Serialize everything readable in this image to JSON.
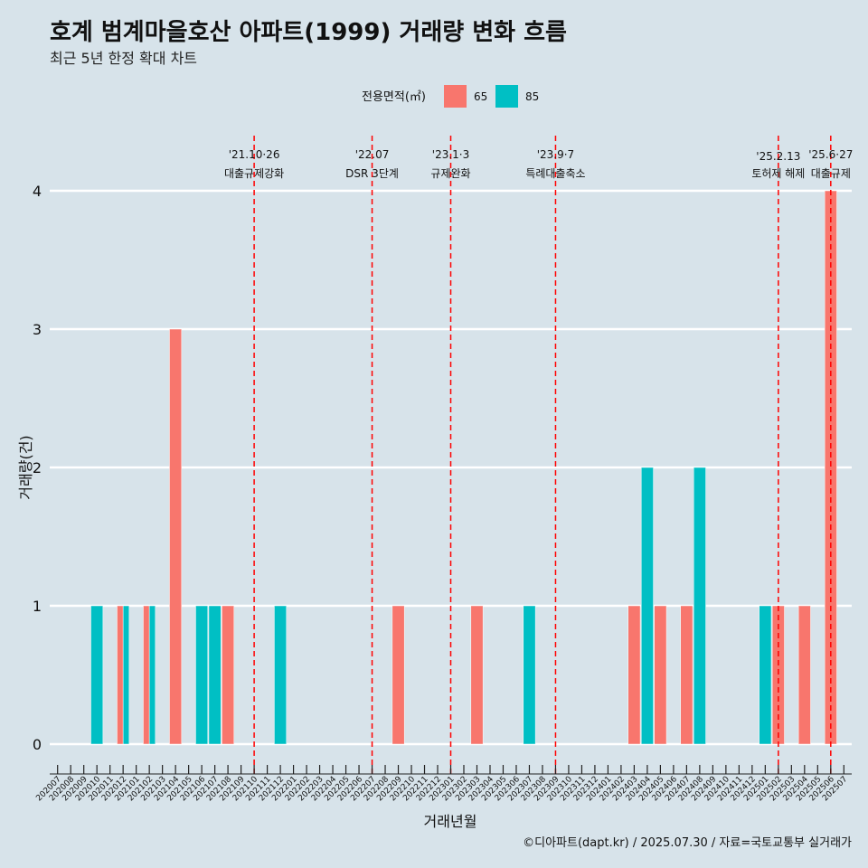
{
  "chart_data": {
    "type": "bar",
    "title": "호계 범계마을호산 아파트(1999) 거래량 변화 흐름",
    "subtitle": "최근 5년 한정 확대 차트",
    "xlabel": "거래년월",
    "ylabel": "거래량(건)",
    "caption": "©디아파트(dapt.kr) / 2025.07.30 / 자료=국토교통부 실거래가",
    "legend": {
      "title": "전용면적(㎡)",
      "position": "top"
    },
    "ylim": [
      0,
      4
    ],
    "yticks": [
      0,
      1,
      2,
      3,
      4
    ],
    "categories": [
      "202007",
      "202008",
      "202009",
      "202010",
      "202011",
      "202012",
      "202101",
      "202102",
      "202103",
      "202104",
      "202105",
      "202106",
      "202107",
      "202108",
      "202109",
      "202110",
      "202111",
      "202112",
      "202201",
      "202202",
      "202203",
      "202204",
      "202205",
      "202206",
      "202207",
      "202208",
      "202209",
      "202210",
      "202211",
      "202212",
      "202301",
      "202302",
      "202303",
      "202304",
      "202305",
      "202306",
      "202307",
      "202308",
      "202309",
      "202310",
      "202311",
      "202312",
      "202401",
      "202402",
      "202403",
      "202404",
      "202405",
      "202406",
      "202407",
      "202408",
      "202409",
      "202410",
      "202411",
      "202412",
      "202501",
      "202502",
      "202503",
      "202504",
      "202505",
      "202506",
      "202507"
    ],
    "series": [
      {
        "name": "65",
        "color": "#f8766d",
        "values": [
          0,
          0,
          0,
          0,
          0,
          1,
          0,
          1,
          0,
          3,
          0,
          0,
          0,
          1,
          0,
          0,
          0,
          0,
          0,
          0,
          0,
          0,
          0,
          0,
          0,
          0,
          1,
          0,
          0,
          0,
          0,
          0,
          1,
          0,
          0,
          0,
          0,
          0,
          0,
          0,
          0,
          0,
          0,
          0,
          1,
          0,
          1,
          0,
          1,
          0,
          0,
          0,
          0,
          0,
          0,
          1,
          0,
          1,
          0,
          4,
          0
        ]
      },
      {
        "name": "85",
        "color": "#00bfc4",
        "values": [
          0,
          0,
          0,
          1,
          0,
          1,
          0,
          1,
          0,
          0,
          0,
          1,
          1,
          0,
          0,
          0,
          0,
          1,
          0,
          0,
          0,
          0,
          0,
          0,
          0,
          0,
          0,
          0,
          0,
          0,
          0,
          0,
          0,
          0,
          0,
          0,
          1,
          0,
          0,
          0,
          0,
          0,
          0,
          0,
          0,
          2,
          0,
          0,
          0,
          2,
          0,
          0,
          0,
          0,
          1,
          0,
          0,
          0,
          0,
          0,
          0
        ]
      }
    ],
    "annotations": [
      {
        "x": "202110",
        "line1": "'21.10·26",
        "line2": "대출규제강화"
      },
      {
        "x": "202207",
        "line1": "'22.07",
        "line2": "DSR 3단계"
      },
      {
        "x": "202301",
        "line1": "'23.1·3",
        "line2": "규제완화"
      },
      {
        "x": "202309",
        "line1": "'23.9·7",
        "line2": "특례대출축소"
      },
      {
        "x": "202502",
        "line1": "'25.2.13",
        "line2": "토허제 해제"
      },
      {
        "x": "202506",
        "line1": "'25.6·27",
        "line2": "대출규제"
      }
    ]
  }
}
